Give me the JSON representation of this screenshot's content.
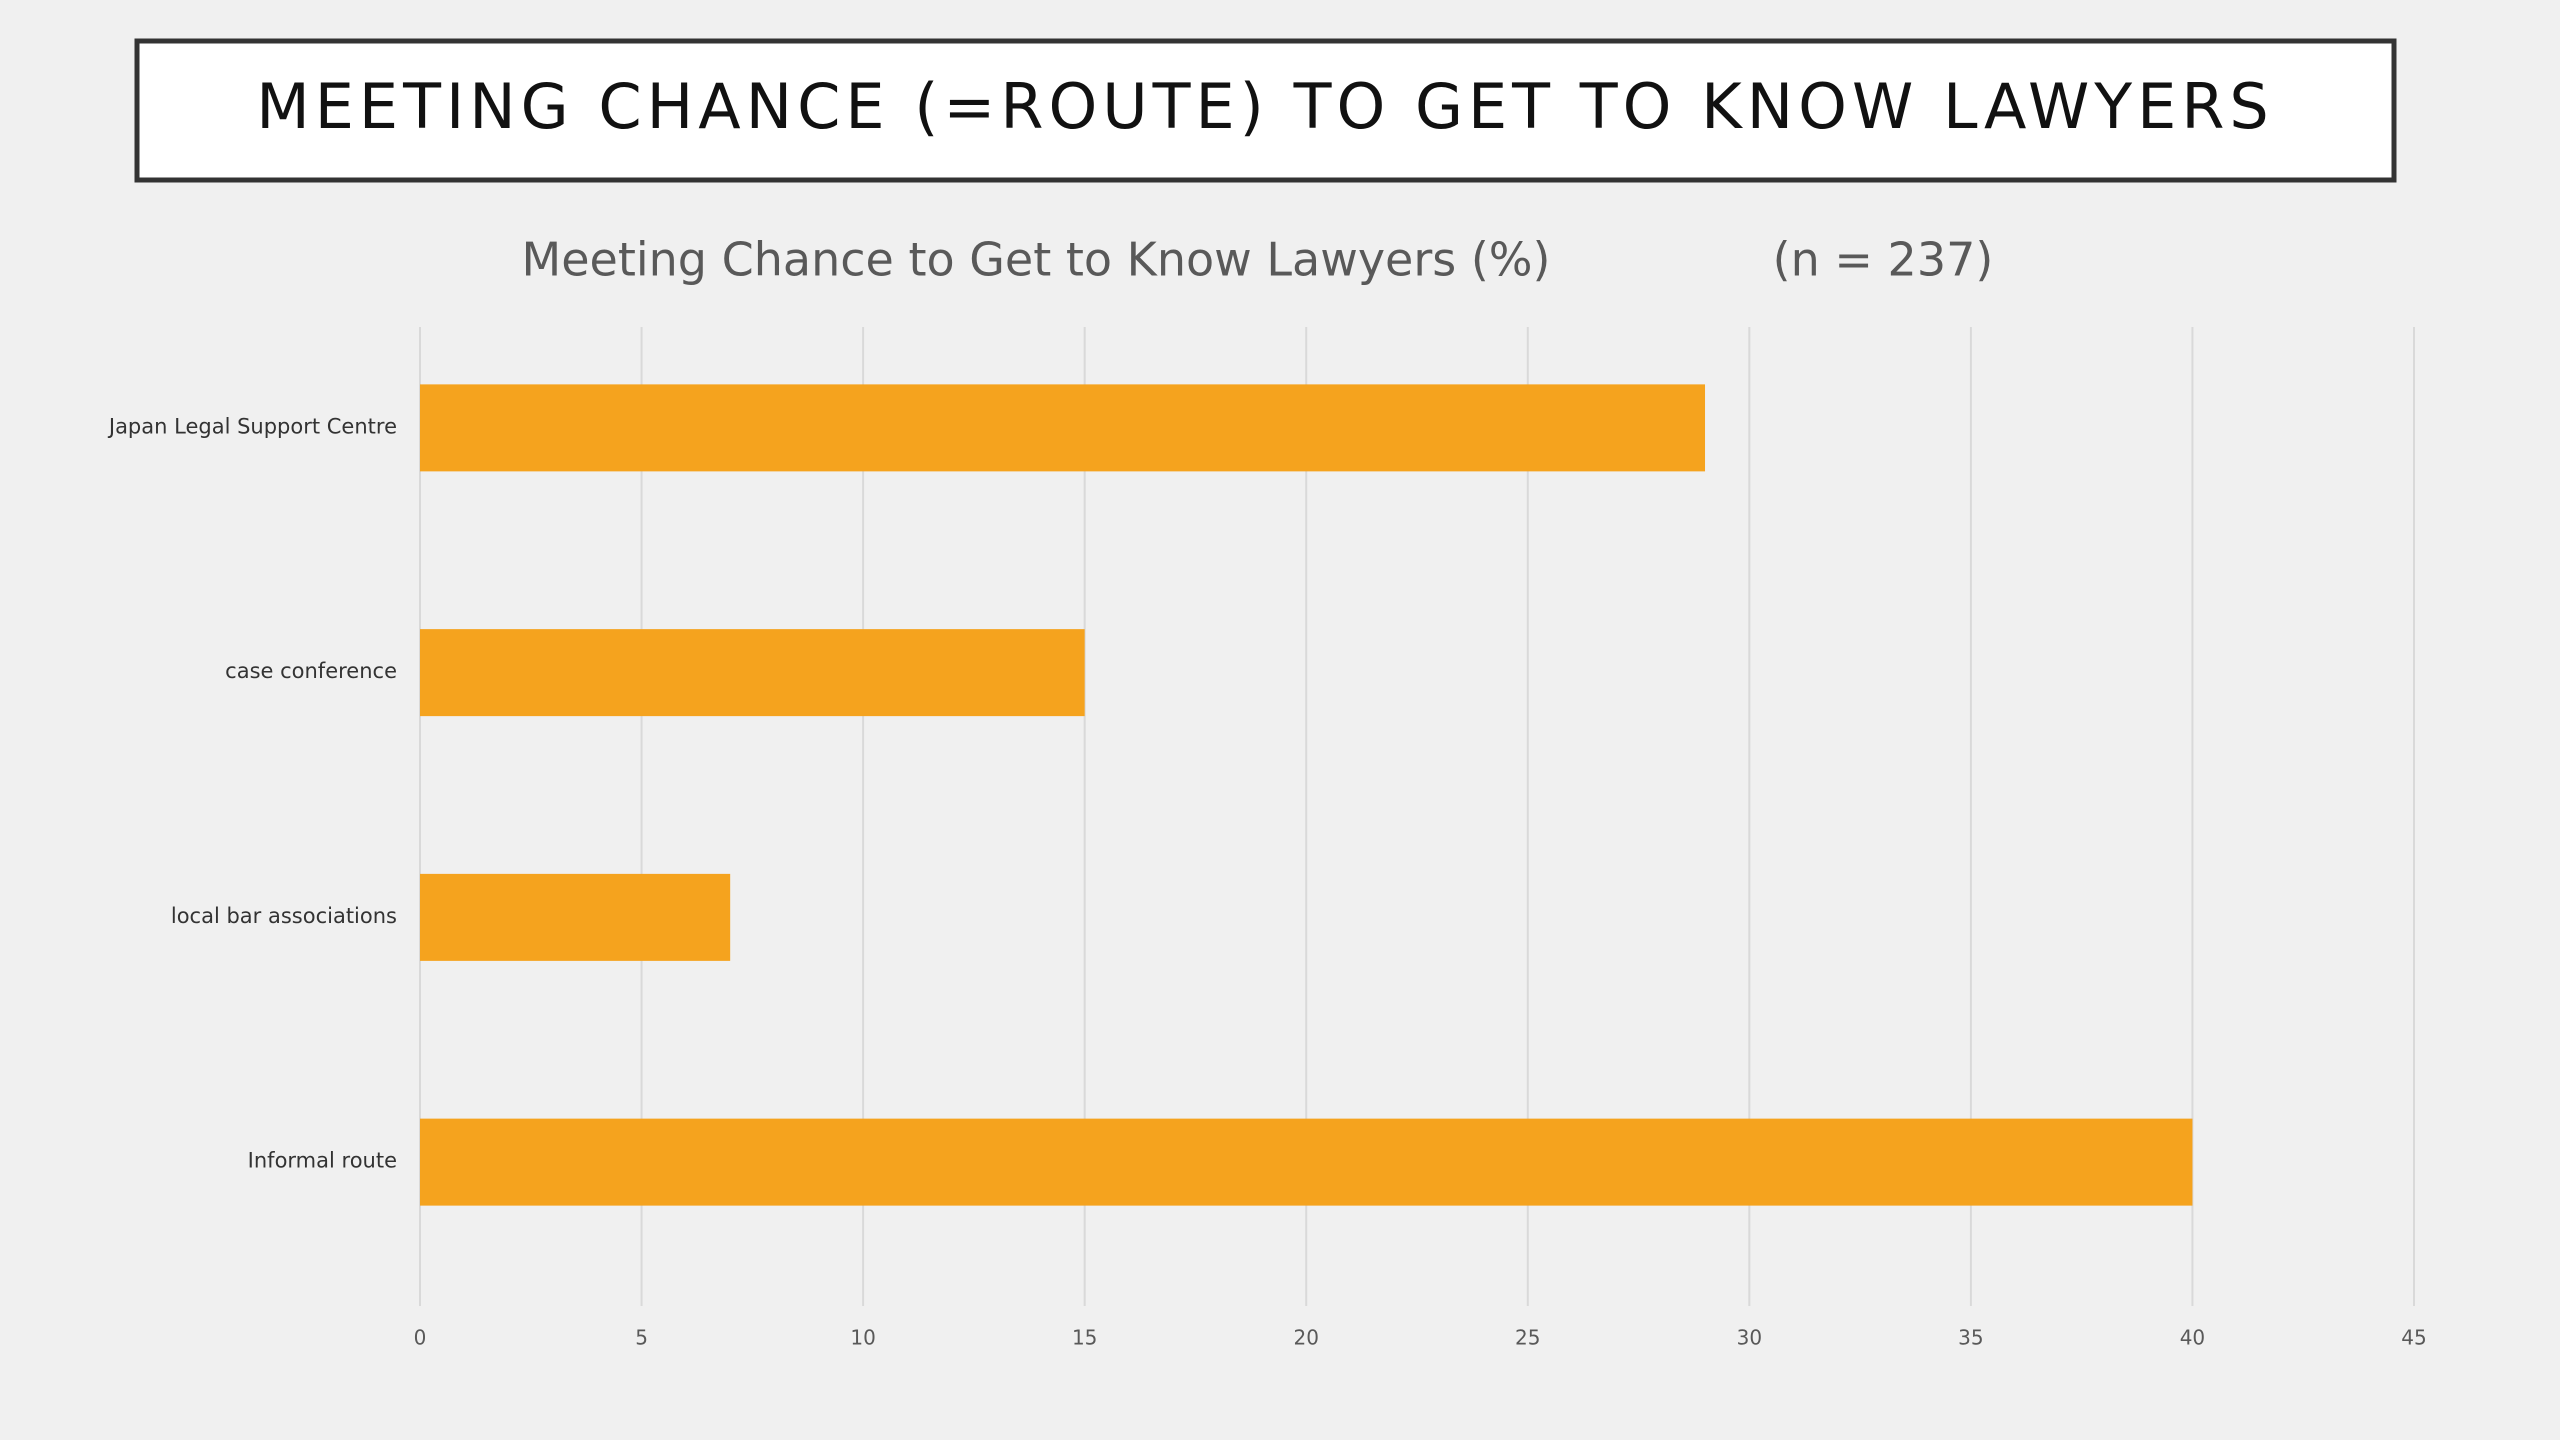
{
  "slide_title": "MEETING CHANCE (=ROUTE) TO GET TO KNOW LAWYERS",
  "chart_data": {
    "type": "bar",
    "orientation": "horizontal",
    "title": "Meeting Chance to Get to Know Lawyers (%)",
    "subtitle": "(n = 237)",
    "categories": [
      "Japan Legal Support Centre",
      "case conference",
      "local bar associations",
      "Informal route"
    ],
    "values": [
      29,
      15,
      7,
      40
    ],
    "color": "#f5a31e",
    "xlim": [
      0,
      45
    ],
    "xticks": [
      0,
      5,
      10,
      15,
      20,
      25,
      30,
      35,
      40,
      45
    ],
    "grid": true
  }
}
